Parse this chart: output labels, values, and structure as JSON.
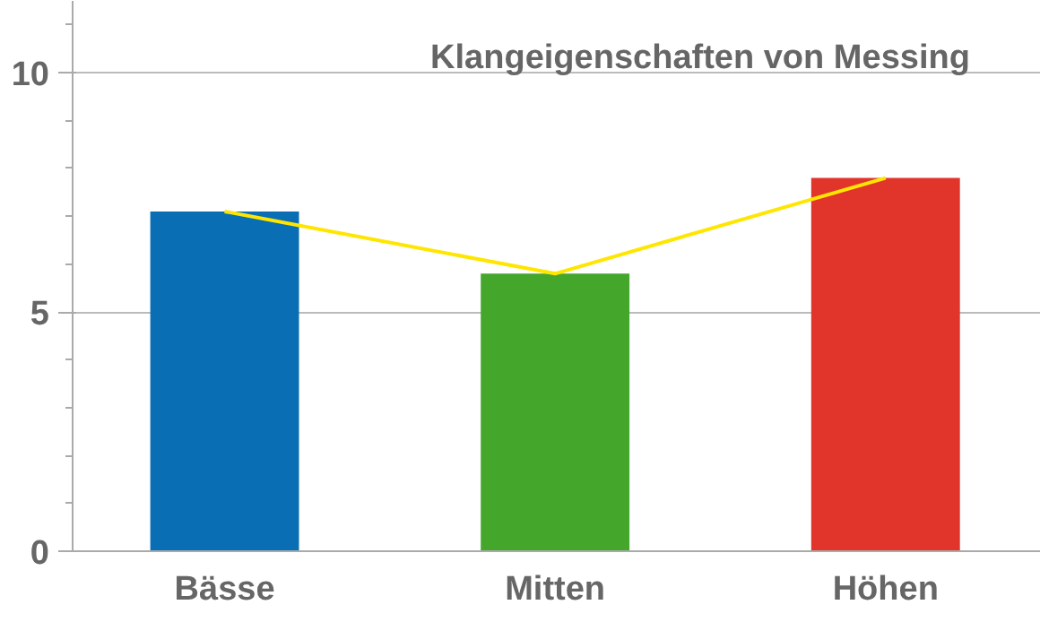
{
  "chart_data": {
    "type": "bar",
    "title": "Klangeigenschaften von Messing",
    "categories": [
      "Bässe",
      "Mitten",
      "Höhen"
    ],
    "series": [
      {
        "values": [
          7.1,
          5.8,
          7.8
        ],
        "colors": [
          "#0a6eb4",
          "#44a72c",
          "#e1342b"
        ]
      },
      {
        "type": "line",
        "values": [
          7.1,
          5.8,
          7.8
        ],
        "color": "#ffe600",
        "line_style": "solid"
      }
    ],
    "ylim": [
      0,
      11.5
    ],
    "yticks": [
      0,
      5,
      10
    ],
    "grid": "y"
  }
}
